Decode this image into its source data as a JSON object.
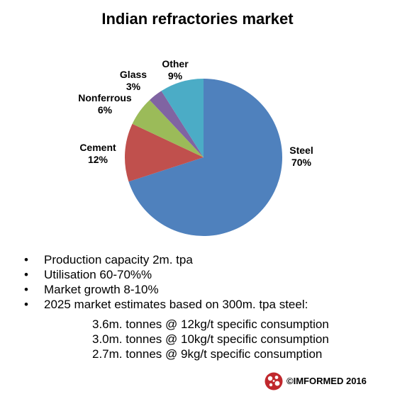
{
  "chart_data": {
    "type": "pie",
    "title": "Indian refractories market",
    "slices": [
      {
        "name": "Steel",
        "value": 70,
        "label": "70%",
        "color": "#4F81BD"
      },
      {
        "name": "Cement",
        "value": 12,
        "label": "12%",
        "color": "#C0504D"
      },
      {
        "name": "Nonferrous",
        "value": 6,
        "label": "6%",
        "color": "#9BBB59"
      },
      {
        "name": "Glass",
        "value": 3,
        "label": "3%",
        "color": "#8064A2"
      },
      {
        "name": "Other",
        "value": 9,
        "label": "9%",
        "color": "#4BACC6"
      }
    ]
  },
  "bullets": [
    "Production capacity 2m. tpa",
    "Utilisation 60-70%%",
    "Market growth 8-10%",
    "2025 market estimates based on 300m. tpa steel:"
  ],
  "bullet_symbol": "•",
  "sub_lines": [
    "3.6m. tonnes @ 12kg/t specific consumption",
    "3.0m. tonnes @ 10kg/t specific consumption",
    "2.7m. tonnes @ 9kg/t specific consumption"
  ],
  "footer": {
    "text": "©IMFORMED 2016",
    "logo_icon": "imformed-logo-icon",
    "logo_color": "#C0282D"
  }
}
